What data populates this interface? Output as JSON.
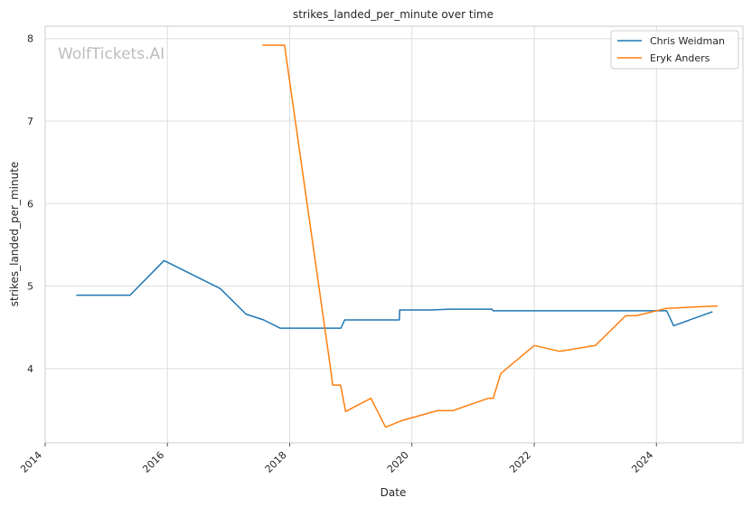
{
  "chart_data": {
    "type": "line",
    "title": "strikes_landed_per_minute over time",
    "xlabel": "Date",
    "ylabel": "strikes_landed_per_minute",
    "watermark": "WolfTickets.AI",
    "xlim": [
      "2014-01-01",
      "2025-06-01"
    ],
    "ylim": [
      3.1,
      8.15
    ],
    "x_ticks": [
      "2014",
      "2016",
      "2018",
      "2020",
      "2022",
      "2024"
    ],
    "y_ticks": [
      4,
      5,
      6,
      7,
      8
    ],
    "grid": true,
    "legend_position": "top-right",
    "series": [
      {
        "name": "Chris Weidman",
        "color": "#1f77b4",
        "points": [
          [
            "2014-07-05",
            4.89
          ],
          [
            "2014-12-01",
            4.89
          ],
          [
            "2015-05-23",
            4.89
          ],
          [
            "2015-12-12",
            5.31
          ],
          [
            "2016-11-12",
            4.97
          ],
          [
            "2017-04-15",
            4.66
          ],
          [
            "2017-07-29",
            4.59
          ],
          [
            "2017-11-04",
            4.49
          ],
          [
            "2018-11-03",
            4.49
          ],
          [
            "2018-11-25",
            4.59
          ],
          [
            "2019-10-18",
            4.59
          ],
          [
            "2019-10-20",
            4.71
          ],
          [
            "2020-05-01",
            4.71
          ],
          [
            "2020-08-08",
            4.72
          ],
          [
            "2021-04-24",
            4.72
          ],
          [
            "2021-05-01",
            4.7
          ],
          [
            "2024-03-02",
            4.7
          ],
          [
            "2024-04-13",
            4.52
          ],
          [
            "2024-12-01",
            4.69
          ]
        ]
      },
      {
        "name": "Eryk Anders",
        "color": "#ff7f0e",
        "points": [
          [
            "2017-07-22",
            7.92
          ],
          [
            "2017-12-01",
            7.92
          ],
          [
            "2018-09-01",
            4.02
          ],
          [
            "2018-09-15",
            3.8
          ],
          [
            "2018-11-01",
            3.8
          ],
          [
            "2018-12-01",
            3.48
          ],
          [
            "2019-05-01",
            3.64
          ],
          [
            "2019-07-28",
            3.29
          ],
          [
            "2019-11-01",
            3.37
          ],
          [
            "2020-06-01",
            3.49
          ],
          [
            "2020-09-01",
            3.49
          ],
          [
            "2021-04-01",
            3.64
          ],
          [
            "2021-05-01",
            3.64
          ],
          [
            "2021-06-15",
            3.94
          ],
          [
            "2022-01-01",
            4.28
          ],
          [
            "2022-06-01",
            4.21
          ],
          [
            "2023-01-01",
            4.28
          ],
          [
            "2023-07-01",
            4.64
          ],
          [
            "2023-09-01",
            4.64
          ],
          [
            "2024-03-01",
            4.73
          ],
          [
            "2025-01-01",
            4.76
          ]
        ]
      }
    ]
  }
}
